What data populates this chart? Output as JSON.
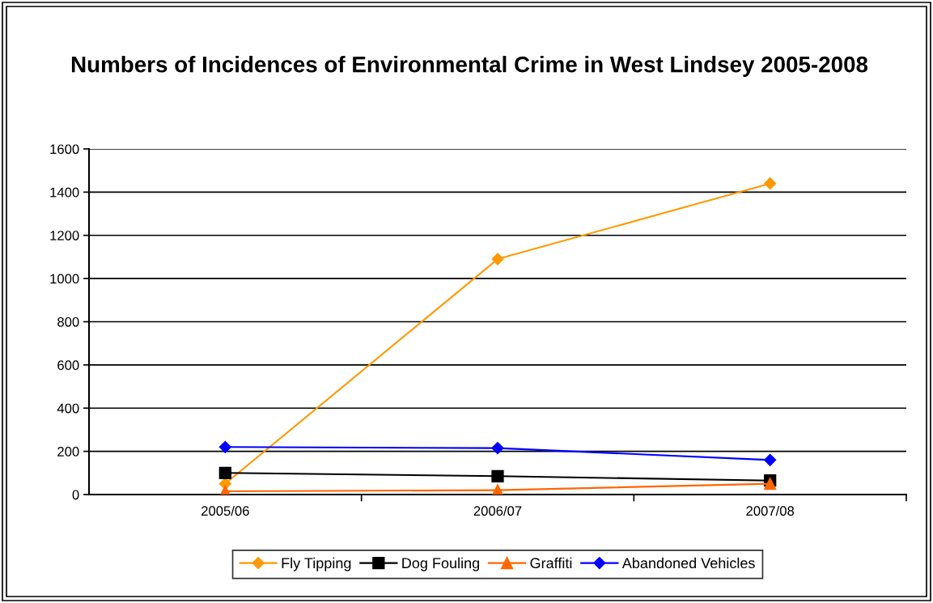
{
  "chart_data": {
    "type": "line",
    "title": "Numbers of Incidences of Environmental Crime in West Lindsey 2005-2008",
    "categories": [
      "2005/06",
      "2006/07",
      "2007/08"
    ],
    "series": [
      {
        "name": "Fly Tipping",
        "color": "#ff9900",
        "marker": "diamond",
        "values": [
          50,
          1090,
          1440
        ]
      },
      {
        "name": "Dog Fouling",
        "color": "#000000",
        "marker": "square",
        "values": [
          100,
          85,
          65
        ]
      },
      {
        "name": "Graffiti",
        "color": "#ff6600",
        "marker": "triangle",
        "values": [
          15,
          20,
          50
        ]
      },
      {
        "name": "Abandoned Vehicles",
        "color": "#0000ff",
        "marker": "diamond",
        "values": [
          220,
          215,
          160
        ]
      }
    ],
    "ylim": [
      0,
      1600
    ],
    "yticks": [
      0,
      200,
      400,
      600,
      800,
      1000,
      1200,
      1400,
      1600
    ],
    "grid": "y",
    "legend": "bottom",
    "line_style": "solid"
  }
}
